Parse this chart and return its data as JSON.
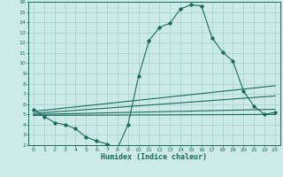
{
  "xlabel": "Humidex (Indice chaleur)",
  "bg_color": "#cceae7",
  "grid_color": "#aad4d0",
  "line_color": "#1a6b5a",
  "x_data": [
    0,
    1,
    2,
    3,
    4,
    5,
    6,
    7,
    8,
    9,
    10,
    11,
    12,
    13,
    14,
    15,
    16,
    17,
    18,
    19,
    20,
    21,
    22,
    23
  ],
  "y_main": [
    5.5,
    4.8,
    4.2,
    4.0,
    3.6,
    2.8,
    2.4,
    2.1,
    1.7,
    4.0,
    8.7,
    12.2,
    13.5,
    13.9,
    15.3,
    15.7,
    15.6,
    12.5,
    11.1,
    10.2,
    7.3,
    5.8,
    5.0,
    5.2
  ],
  "ylim": [
    2,
    16
  ],
  "xlim": [
    -0.5,
    23.5
  ],
  "yticks": [
    2,
    3,
    4,
    5,
    6,
    7,
    8,
    9,
    10,
    11,
    12,
    13,
    14,
    15,
    16
  ],
  "xticks": [
    0,
    1,
    2,
    3,
    4,
    5,
    6,
    7,
    8,
    9,
    10,
    11,
    12,
    13,
    14,
    15,
    16,
    17,
    18,
    19,
    20,
    21,
    22,
    23
  ],
  "regression_lines": [
    {
      "x0": 0,
      "y0": 5.3,
      "x1": 23,
      "y1": 7.8
    },
    {
      "x0": 0,
      "y0": 5.1,
      "x1": 23,
      "y1": 6.8
    },
    {
      "x0": 0,
      "y0": 5.0,
      "x1": 23,
      "y1": 5.5
    },
    {
      "x0": 0,
      "y0": 4.9,
      "x1": 23,
      "y1": 5.0
    }
  ],
  "tick_fontsize": 4.5,
  "xlabel_fontsize": 6.0
}
